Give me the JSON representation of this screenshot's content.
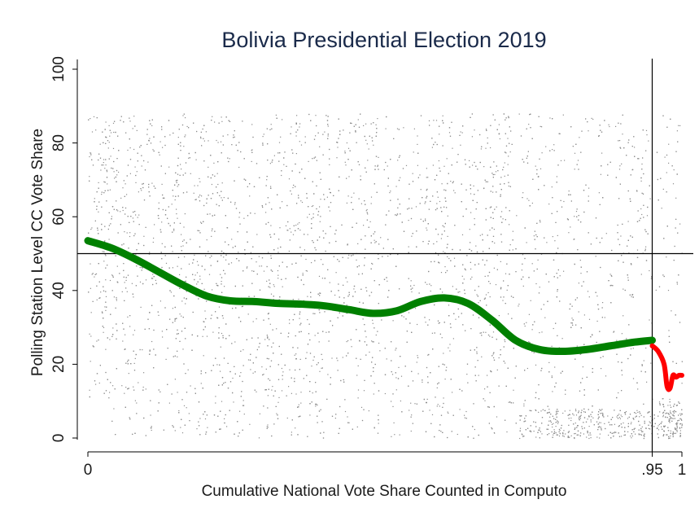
{
  "chart_data": {
    "type": "scatter",
    "title": "Bolivia Presidential Election 2019",
    "xlabel": "Cumulative National Vote Share Counted in Computo",
    "ylabel": "Polling Station Level CC Vote Share",
    "xlim": [
      -0.01,
      1.0
    ],
    "ylim": [
      -2,
      102
    ],
    "x_ticks": [
      {
        "value": 0,
        "label": "0"
      },
      {
        "value": 0.95,
        "label": ".95"
      },
      {
        "value": 1,
        "label": "1"
      }
    ],
    "y_ticks": [
      {
        "value": 0,
        "label": "0"
      },
      {
        "value": 20,
        "label": "20"
      },
      {
        "value": 40,
        "label": "40"
      },
      {
        "value": 60,
        "label": "60"
      },
      {
        "value": 80,
        "label": "80"
      },
      {
        "value": 100,
        "label": "100"
      }
    ],
    "reference_lines": {
      "horizontal": 50,
      "vertical": 0.95
    },
    "grid": false,
    "legend": "none",
    "colors": {
      "scatter": "#8c8c8c",
      "fit_before": "#008000",
      "fit_after": "#ff0000",
      "title": "#1a2a4a"
    },
    "series": [
      {
        "kind": "scatter",
        "description_points": "polling stations (dense cloud, approx. 0–95)"
      },
      {
        "kind": "smoothed",
        "segment": "before",
        "x": [
          0,
          0.04,
          0.08,
          0.12,
          0.16,
          0.2,
          0.24,
          0.28,
          0.32,
          0.36,
          0.4,
          0.44,
          0.48,
          0.52,
          0.56,
          0.6,
          0.64,
          0.68,
          0.72,
          0.76,
          0.8,
          0.84,
          0.88,
          0.92,
          0.95
        ],
        "y": [
          53.5,
          51.5,
          48.5,
          45,
          41.5,
          38.5,
          37.2,
          37,
          36.5,
          36.3,
          35.8,
          34.8,
          33.8,
          34.5,
          37,
          38,
          36.5,
          32,
          26.5,
          24,
          23.5,
          24,
          25,
          26,
          26.5
        ]
      },
      {
        "kind": "smoothed",
        "segment": "after",
        "x": [
          0.95,
          0.96,
          0.97,
          0.975,
          0.98,
          0.985,
          0.99,
          0.995,
          1.0
        ],
        "y": [
          25,
          23.5,
          20,
          14,
          13.5,
          17,
          16.5,
          17,
          17
        ]
      }
    ]
  }
}
